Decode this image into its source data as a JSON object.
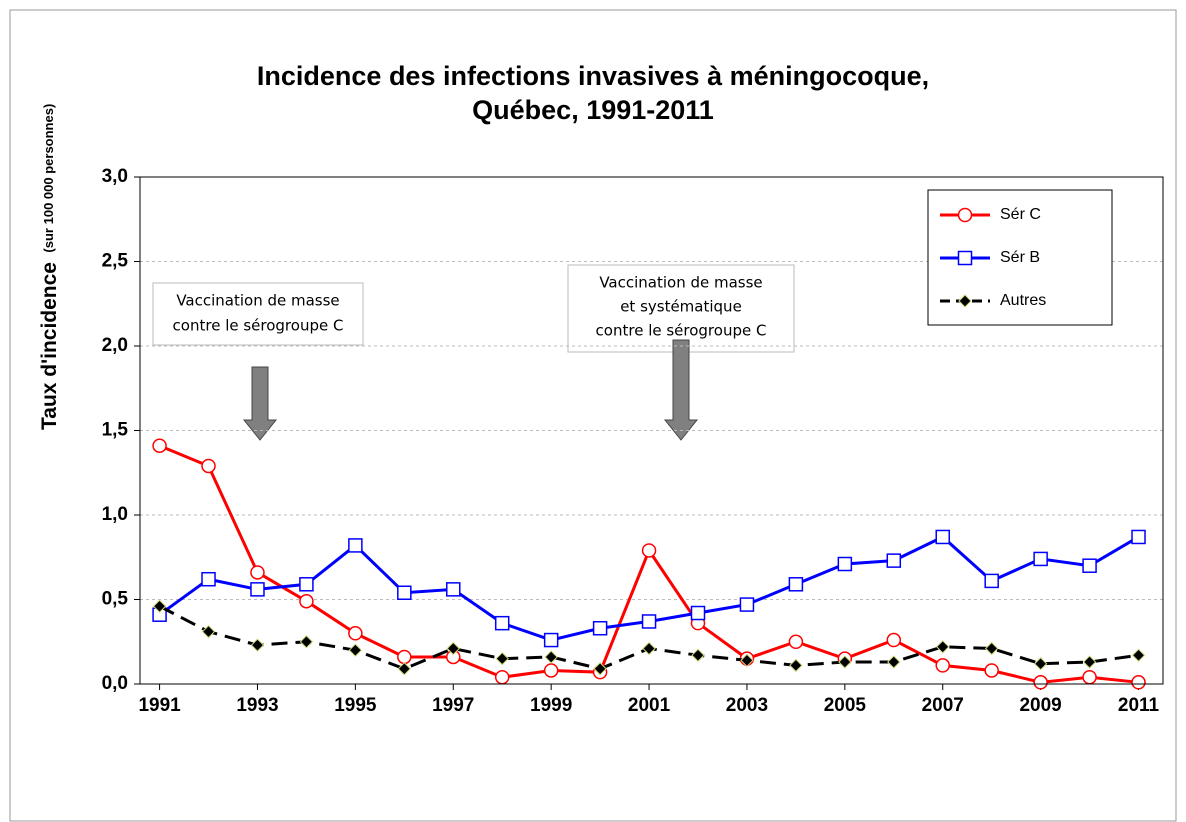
{
  "chart_data": {
    "type": "line",
    "title": [
      "Incidence des infections invasives à méningocoque,",
      "Québec, 1991-2011"
    ],
    "y_label": "Taux d'incidence",
    "y_label_unit": "(sur 100 000 personnes)",
    "x": [
      1991,
      1992,
      1993,
      1994,
      1995,
      1996,
      1997,
      1998,
      1999,
      2000,
      2001,
      2002,
      2003,
      2004,
      2005,
      2006,
      2007,
      2008,
      2009,
      2010,
      2011
    ],
    "series": [
      {
        "name": "Sér C",
        "color": "#ff0000",
        "marker": "circle",
        "line_style": "solid",
        "values": [
          1.41,
          1.29,
          0.66,
          0.49,
          0.3,
          0.16,
          0.16,
          0.04,
          0.08,
          0.07,
          0.79,
          0.36,
          0.15,
          0.25,
          0.15,
          0.26,
          0.11,
          0.08,
          0.01,
          0.04,
          0.01
        ]
      },
      {
        "name": "Sér B",
        "color": "#0000ff",
        "marker": "square",
        "line_style": "solid",
        "values": [
          0.41,
          0.62,
          0.56,
          0.59,
          0.82,
          0.54,
          0.56,
          0.36,
          0.26,
          0.33,
          0.37,
          0.42,
          0.47,
          0.59,
          0.71,
          0.73,
          0.87,
          0.61,
          0.74,
          0.7,
          0.87
        ]
      },
      {
        "name": "Autres",
        "color": "#000000",
        "marker": "diamond",
        "line_style": "dashed",
        "values": [
          0.46,
          0.31,
          0.23,
          0.25,
          0.2,
          0.09,
          0.21,
          0.15,
          0.16,
          0.09,
          0.21,
          0.17,
          0.14,
          0.11,
          0.13,
          0.13,
          0.22,
          0.21,
          0.12,
          0.13,
          0.17
        ]
      }
    ],
    "xlim": [
      1990.6,
      2011.5
    ],
    "xticks": [
      1991,
      1993,
      1995,
      1997,
      1999,
      2001,
      2003,
      2005,
      2007,
      2009,
      2011
    ],
    "ylim": [
      0,
      3
    ],
    "yticks": [
      {
        "value": 0,
        "label": "0,0"
      },
      {
        "value": 0.5,
        "label": "0,5"
      },
      {
        "value": 1,
        "label": "1,0"
      },
      {
        "value": 1.5,
        "label": "1,5"
      },
      {
        "value": 2,
        "label": "2,0"
      },
      {
        "value": 2.5,
        "label": "2,5"
      },
      {
        "value": 3,
        "label": "3,0"
      }
    ],
    "grid": true,
    "legend": "upper right",
    "annotations": [
      {
        "lines": [
          "Vaccination de masse",
          "contre le sérogroupe C"
        ]
      },
      {
        "lines": [
          "Vaccination de masse",
          "et systématique",
          "contre le sérogroupe C"
        ]
      }
    ]
  }
}
